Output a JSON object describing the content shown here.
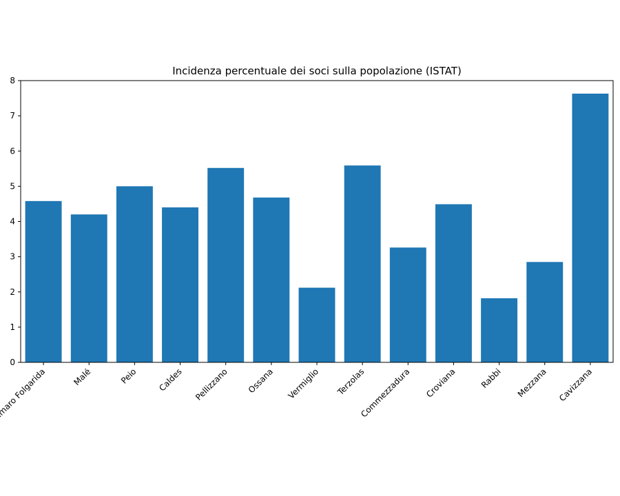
{
  "chart_data": {
    "type": "bar",
    "title": "Incidenza percentuale dei soci sulla popolazione (ISTAT)",
    "xlabel": "",
    "ylabel": "",
    "categories": [
      "Dimaro Folgarida",
      "Malé",
      "Peio",
      "Caldes",
      "Pellizzano",
      "Ossana",
      "Vermiglio",
      "Terzolas",
      "Commezzadura",
      "Croviana",
      "Rabbi",
      "Mezzana",
      "Cavizzana"
    ],
    "values": [
      4.58,
      4.2,
      5.0,
      4.4,
      5.52,
      4.68,
      2.12,
      5.59,
      3.26,
      4.49,
      1.82,
      2.85,
      7.63
    ],
    "ylim": [
      0,
      8
    ],
    "yticks": [
      0,
      1,
      2,
      3,
      4,
      5,
      6,
      7,
      8
    ],
    "bar_color": "#1f77b4",
    "grid": false,
    "legend": null
  }
}
